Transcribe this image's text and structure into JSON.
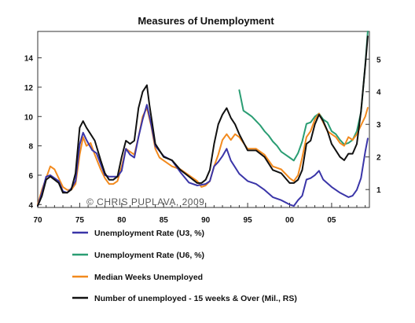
{
  "chart_data": {
    "type": "line",
    "title": "Measures of Unemployment",
    "watermark": "© CHRIS PUPLAVA, 2009",
    "x_tick_labels": [
      "70",
      "75",
      "80",
      "85",
      "90",
      "95",
      "00",
      "05"
    ],
    "x_tick_years": [
      1970,
      1975,
      1980,
      1985,
      1990,
      1995,
      2000,
      2005
    ],
    "xlim": [
      1970,
      2009.5
    ],
    "y_left": {
      "ylim": [
        3.8,
        15.8
      ],
      "ticks": [
        4,
        6,
        8,
        10,
        12,
        14
      ]
    },
    "y_right": {
      "ylim": [
        0.45,
        5.85
      ],
      "ticks": [
        1,
        2,
        3,
        4,
        5
      ]
    },
    "legend_placement": "bottom",
    "series": [
      {
        "name": "Unemployment Rate (U3, %)",
        "color": "#3a35a8",
        "axis": "left",
        "x": [
          1970,
          1970.5,
          1971,
          1971.5,
          1972,
          1972.5,
          1973,
          1973.5,
          1974,
          1974.5,
          1975,
          1975.4,
          1975.8,
          1976.5,
          1977,
          1978,
          1978.5,
          1979,
          1979.5,
          1980,
          1980.5,
          1981,
          1981.5,
          1982,
          1982.5,
          1983,
          1983.5,
          1984,
          1985,
          1986,
          1987,
          1988,
          1989,
          1990,
          1990.5,
          1991,
          1991.5,
          1992,
          1992.5,
          1993,
          1994,
          1995,
          1996,
          1997,
          1998,
          1999,
          2000,
          2000.5,
          2001,
          2001.5,
          2002,
          2002.5,
          2003,
          2003.5,
          2004,
          2005,
          2006,
          2007,
          2007.5,
          2008,
          2008.5,
          2009,
          2009.3
        ],
        "y": [
          3.9,
          4.8,
          5.9,
          6.0,
          5.8,
          5.6,
          4.9,
          4.8,
          5.1,
          5.6,
          8.1,
          8.9,
          8.4,
          7.7,
          7.5,
          6.0,
          5.9,
          5.9,
          5.9,
          6.3,
          7.8,
          7.4,
          7.2,
          8.6,
          9.8,
          10.8,
          9.5,
          8.0,
          7.3,
          7.0,
          6.2,
          5.5,
          5.3,
          5.4,
          5.6,
          6.6,
          6.9,
          7.3,
          7.8,
          7.0,
          6.1,
          5.6,
          5.4,
          5.0,
          4.5,
          4.3,
          4.0,
          3.9,
          4.3,
          4.6,
          5.7,
          5.8,
          6.0,
          6.3,
          5.7,
          5.2,
          4.8,
          4.5,
          4.6,
          5.0,
          5.8,
          7.6,
          8.5
        ]
      },
      {
        "name": "Unemployment Rate (U6, %)",
        "color": "#2a9d73",
        "axis": "left",
        "x": [
          1994,
          1994.5,
          1995,
          1995.5,
          1996,
          1996.5,
          1997,
          1997.5,
          1998,
          1998.5,
          1999,
          1999.5,
          2000,
          2000.5,
          2001,
          2001.5,
          2002,
          2002.5,
          2003,
          2003.5,
          2004,
          2004.5,
          2005,
          2005.5,
          2006,
          2006.5,
          2007,
          2007.5,
          2008,
          2008.5,
          2009,
          2009.3
        ],
        "y": [
          11.8,
          10.4,
          10.2,
          10.0,
          9.7,
          9.4,
          9.0,
          8.7,
          8.3,
          8.0,
          7.6,
          7.4,
          7.2,
          7.0,
          7.5,
          8.3,
          9.5,
          9.6,
          10.0,
          10.2,
          9.8,
          9.6,
          9.0,
          8.8,
          8.4,
          8.1,
          8.2,
          8.4,
          9.0,
          10.3,
          13.5,
          15.8
        ]
      },
      {
        "name": "Median Weeks Unemployed",
        "color": "#f28a1e",
        "axis": "left",
        "x": [
          1970,
          1970.5,
          1971,
          1971.5,
          1972,
          1972.5,
          1973,
          1973.5,
          1974,
          1974.5,
          1975,
          1975.4,
          1975.8,
          1976.3,
          1976.8,
          1977.5,
          1978,
          1978.5,
          1979,
          1979.5,
          1980,
          1980.5,
          1981,
          1981.5,
          1982,
          1982.5,
          1983,
          1983.5,
          1984,
          1984.5,
          1985,
          1986,
          1987,
          1988,
          1989,
          1989.5,
          1990,
          1990.5,
          1991,
          1991.5,
          1992,
          1992.5,
          1993,
          1993.5,
          1994,
          1995,
          1996,
          1997,
          1998,
          1999,
          2000,
          2000.5,
          2001,
          2001.5,
          2002,
          2002.5,
          2003,
          2003.5,
          2004,
          2004.5,
          2005,
          2005.5,
          2006,
          2006.5,
          2007,
          2007.5,
          2008,
          2008.5,
          2009,
          2009.3
        ],
        "y": [
          4.0,
          5.0,
          5.8,
          6.6,
          6.4,
          5.8,
          5.2,
          5.0,
          5.0,
          5.4,
          7.4,
          8.6,
          8.0,
          8.2,
          7.4,
          6.4,
          5.8,
          5.4,
          5.4,
          5.6,
          6.6,
          7.8,
          7.6,
          7.4,
          8.6,
          10.0,
          10.6,
          9.4,
          7.8,
          7.2,
          7.0,
          6.6,
          6.4,
          6.0,
          5.6,
          5.2,
          5.3,
          5.6,
          6.6,
          7.4,
          8.4,
          8.8,
          8.4,
          8.8,
          8.6,
          7.8,
          7.8,
          7.4,
          6.6,
          6.4,
          5.8,
          5.6,
          6.0,
          7.2,
          8.6,
          9.0,
          9.8,
          10.2,
          9.6,
          9.0,
          8.8,
          8.6,
          8.2,
          8.0,
          8.6,
          8.4,
          8.8,
          9.4,
          10.0,
          10.6
        ]
      },
      {
        "name": "Number of unemployed - 15 weeks & Over (Mil., RS)",
        "color": "#111111",
        "axis": "right",
        "x": [
          1970,
          1970.5,
          1971,
          1971.5,
          1972,
          1972.5,
          1973,
          1973.5,
          1974,
          1974.5,
          1975,
          1975.4,
          1975.8,
          1976.3,
          1976.8,
          1977.5,
          1978,
          1978.5,
          1979,
          1979.5,
          1980,
          1980.5,
          1981,
          1981.5,
          1982,
          1982.5,
          1983,
          1983.3,
          1983.6,
          1984,
          1984.5,
          1985,
          1986,
          1987,
          1988,
          1989,
          1989.5,
          1990,
          1990.5,
          1991,
          1991.5,
          1992,
          1992.5,
          1993,
          1993.5,
          1994,
          1995,
          1996,
          1997,
          1998,
          1999,
          2000,
          2000.5,
          2001,
          2001.5,
          2002,
          2002.5,
          2003,
          2003.5,
          2004,
          2004.5,
          2005,
          2005.5,
          2006,
          2006.5,
          2007,
          2007.5,
          2008,
          2008.5,
          2009,
          2009.3
        ],
        "y": [
          0.5,
          0.8,
          1.3,
          1.4,
          1.3,
          1.2,
          0.9,
          0.9,
          1.0,
          1.5,
          2.9,
          3.1,
          2.9,
          2.7,
          2.5,
          1.9,
          1.5,
          1.3,
          1.3,
          1.4,
          2.0,
          2.5,
          2.4,
          2.5,
          3.5,
          4.0,
          4.2,
          3.6,
          3.1,
          2.4,
          2.2,
          2.0,
          1.9,
          1.6,
          1.4,
          1.2,
          1.2,
          1.3,
          1.6,
          2.4,
          3.0,
          3.3,
          3.5,
          3.2,
          3.0,
          2.7,
          2.2,
          2.2,
          2.0,
          1.6,
          1.5,
          1.2,
          1.2,
          1.3,
          1.6,
          2.4,
          2.5,
          3.0,
          3.3,
          3.1,
          2.8,
          2.4,
          2.2,
          2.0,
          1.9,
          2.1,
          2.1,
          2.4,
          3.4,
          4.8,
          5.7
        ]
      }
    ]
  }
}
